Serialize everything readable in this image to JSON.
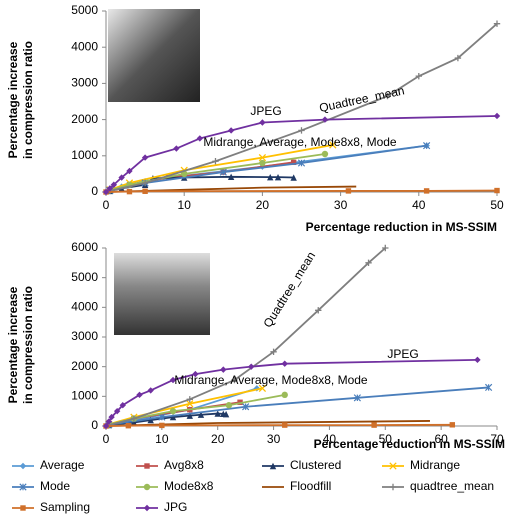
{
  "chart_data": [
    {
      "type": "line",
      "grid": false,
      "ylabel": [
        "Percentage increase",
        "in compression ratio"
      ],
      "xlabel": "Percentage reduction in MS-SSIM",
      "xlim": [
        0,
        50
      ],
      "xticks": [
        0,
        10,
        20,
        30,
        40,
        50
      ],
      "ylim": [
        0,
        5000
      ],
      "yticks": [
        0,
        1000,
        2000,
        3000,
        4000,
        5000
      ],
      "annotations": [
        "JPEG",
        "Quadtree_mean",
        "Midrange, Average, Mode8x8, Mode"
      ],
      "series": [
        {
          "color": "#5b9bd5",
          "marker": "diamond",
          "x": [
            0.5,
            2,
            5,
            10,
            20,
            41
          ],
          "values": [
            50,
            150,
            300,
            450,
            700,
            1280
          ]
        },
        {
          "color": "#c0504d",
          "marker": "square",
          "x": [
            0.5,
            3,
            8,
            15,
            24
          ],
          "values": [
            50,
            200,
            400,
            550,
            820
          ]
        },
        {
          "color": "#1f3864",
          "marker": "triangle",
          "x": [
            0.5,
            2,
            5,
            6,
            10,
            16,
            21,
            22,
            24
          ],
          "values": [
            30,
            100,
            200,
            380,
            400,
            420,
            410,
            410,
            400
          ]
        },
        {
          "color": "#ffc000",
          "marker": "x",
          "x": [
            0.5,
            3,
            10,
            20,
            29
          ],
          "values": [
            60,
            250,
            600,
            950,
            1300
          ]
        },
        {
          "color": "#4a7ebb",
          "marker": "asterisk",
          "x": [
            0.5,
            5,
            15,
            25,
            41
          ],
          "values": [
            40,
            250,
            550,
            800,
            1280
          ]
        },
        {
          "color": "#9bbb59",
          "marker": "circle",
          "x": [
            0.5,
            3,
            10,
            20,
            28
          ],
          "values": [
            50,
            200,
            500,
            800,
            1050
          ]
        },
        {
          "color": "#984807",
          "marker": "none",
          "x": [
            0,
            10,
            20,
            32
          ],
          "values": [
            0,
            60,
            120,
            150
          ]
        },
        {
          "color": "#7f7f7f",
          "marker": "plus",
          "x": [
            0.5,
            5,
            14,
            25,
            36,
            40,
            45,
            50
          ],
          "values": [
            30,
            250,
            850,
            1700,
            2650,
            3200,
            3700,
            4650
          ]
        },
        {
          "color": "#d0702a",
          "marker": "square",
          "x": [
            0,
            3,
            5,
            31,
            41,
            50
          ],
          "values": [
            0,
            10,
            20,
            30,
            30,
            40
          ]
        },
        {
          "color": "#7030a0",
          "marker": "diamond",
          "x": [
            0,
            0.5,
            1,
            2,
            3,
            5,
            9,
            12,
            16,
            20,
            28,
            50
          ],
          "values": [
            0,
            100,
            200,
            400,
            580,
            950,
            1200,
            1480,
            1700,
            1920,
            2000,
            2100
          ]
        }
      ]
    },
    {
      "type": "line",
      "grid": false,
      "ylabel": [
        "Percentage increase",
        "in compression ratio"
      ],
      "xlabel": "Percentage reduction in MS-SSIM",
      "xlim": [
        0,
        70
      ],
      "xticks": [
        0,
        10,
        20,
        30,
        40,
        50,
        60,
        70
      ],
      "ylim": [
        0,
        6000
      ],
      "yticks": [
        0,
        1000,
        2000,
        3000,
        4000,
        5000,
        6000
      ],
      "annotations": [
        "Quadtree_mean",
        "JPEG",
        "Midrange, Average, Mode8x8, Mode"
      ],
      "series": [
        {
          "name": "Average",
          "color": "#5b9bd5",
          "marker": "diamond",
          "x": [
            0.5,
            5,
            15,
            27
          ],
          "values": [
            50,
            200,
            550,
            1270
          ]
        },
        {
          "name": "Avg8x8",
          "color": "#c0504d",
          "marker": "square",
          "x": [
            0.5,
            5,
            15,
            24
          ],
          "values": [
            50,
            250,
            550,
            800
          ]
        },
        {
          "name": "Clustered",
          "color": "#1f3864",
          "marker": "triangle",
          "x": [
            0.5,
            5,
            8,
            12,
            15,
            17,
            20,
            21,
            21.5
          ],
          "values": [
            30,
            120,
            200,
            300,
            350,
            380,
            420,
            410,
            400
          ]
        },
        {
          "name": "Midrange",
          "color": "#ffc000",
          "marker": "x",
          "x": [
            0.5,
            5,
            15,
            28
          ],
          "values": [
            60,
            300,
            750,
            1270
          ]
        },
        {
          "name": "Mode",
          "color": "#4a7ebb",
          "marker": "asterisk",
          "x": [
            0.5,
            10,
            25,
            45,
            68.5
          ],
          "values": [
            40,
            300,
            650,
            950,
            1300
          ]
        },
        {
          "name": "Mode8x8",
          "color": "#9bbb59",
          "marker": "circle",
          "x": [
            0.5,
            5,
            12,
            22,
            32
          ],
          "values": [
            50,
            250,
            500,
            700,
            1050
          ]
        },
        {
          "name": "Floodfill",
          "color": "#984807",
          "marker": "none",
          "x": [
            0,
            20,
            58
          ],
          "values": [
            0,
            100,
            170
          ]
        },
        {
          "name": "quadtree_mean",
          "color": "#7f7f7f",
          "marker": "plus",
          "x": [
            0.5,
            5,
            15,
            23,
            30,
            38,
            47,
            50
          ],
          "values": [
            30,
            250,
            900,
            1550,
            2500,
            3900,
            5500,
            6000
          ]
        },
        {
          "name": "Sampling",
          "color": "#d0702a",
          "marker": "square",
          "x": [
            0,
            4,
            10,
            32,
            48,
            62
          ],
          "values": [
            0,
            10,
            20,
            30,
            30,
            40
          ]
        },
        {
          "name": "JPG",
          "color": "#7030a0",
          "marker": "diamond",
          "x": [
            0,
            0.5,
            1,
            2,
            3,
            6,
            8,
            12,
            16,
            21,
            26,
            32,
            66.5
          ],
          "values": [
            0,
            150,
            300,
            500,
            700,
            1050,
            1200,
            1550,
            1750,
            1900,
            2000,
            2100,
            2230
          ]
        }
      ]
    }
  ]
}
